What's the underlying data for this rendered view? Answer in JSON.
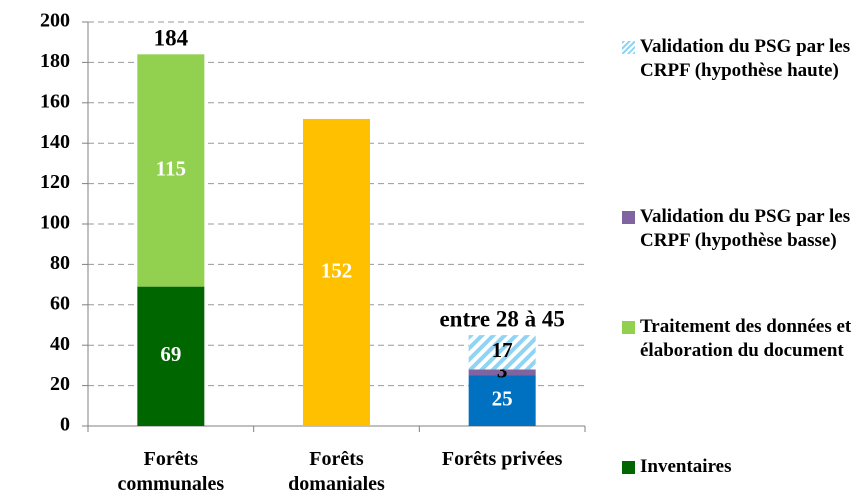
{
  "chart_data": {
    "type": "stacked_bar",
    "categories": [
      "Forêts communales",
      "Forêts domaniales",
      "Forêts privées"
    ],
    "series": [
      {
        "name": "Inventaires",
        "color": "#006600",
        "label_color": "#ffffff",
        "values": [
          69,
          null,
          null
        ]
      },
      {
        "name": "Traitement des données et élaboration du document",
        "color": "#92d050",
        "label_color": "#ffffff",
        "values": [
          115,
          null,
          null
        ]
      },
      {
        "color": "#ffc000",
        "label_color": "#ffffff",
        "values": [
          null,
          152,
          null
        ]
      },
      {
        "color": "#0070c0",
        "label_color": "#ffffff",
        "values": [
          null,
          null,
          25
        ]
      },
      {
        "name": "Validation du PSG par les CRPF (hypothèse basse)",
        "color": "#8064a2",
        "label_color": "#000000",
        "values": [
          null,
          null,
          3
        ]
      },
      {
        "name": "Validation du PSG par les CRPF (hypothèse haute)",
        "color": "#8fd3f5",
        "pattern": "hatch",
        "label_color": "#000000",
        "values": [
          null,
          null,
          17
        ]
      }
    ],
    "total_labels": [
      "184",
      null,
      "entre 28 à 45"
    ],
    "ylim": [
      0,
      200
    ],
    "yticks": [
      0,
      20,
      40,
      60,
      80,
      100,
      120,
      140,
      160,
      180,
      200
    ],
    "grid": true,
    "legend": "right"
  }
}
